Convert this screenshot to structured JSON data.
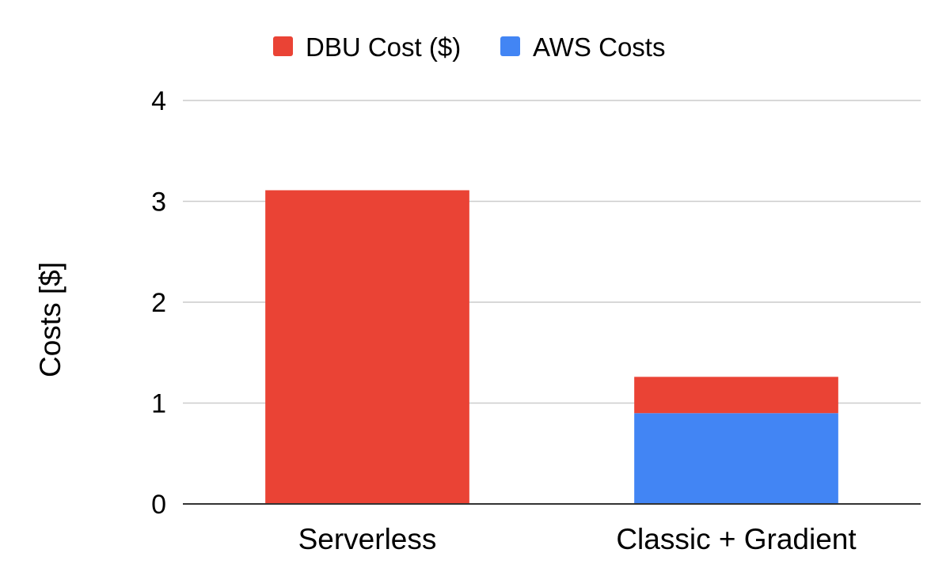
{
  "chart_data": {
    "type": "bar",
    "stacked": true,
    "title": "",
    "xlabel": "",
    "ylabel": "Costs [$]",
    "ylim": [
      0,
      4
    ],
    "yticks": [
      0,
      1,
      2,
      3,
      4
    ],
    "grid": true,
    "legend_position": "top",
    "categories": [
      "Serverless",
      "Classic + Gradient"
    ],
    "series": [
      {
        "name": "AWS Costs",
        "color": "#4285f4",
        "values": [
          0,
          0.9
        ]
      },
      {
        "name": "DBU Cost ($)",
        "color": "#ea4335",
        "values": [
          3.11,
          0.36
        ]
      }
    ],
    "legend_order": [
      "DBU Cost ($)",
      "AWS Costs"
    ]
  }
}
